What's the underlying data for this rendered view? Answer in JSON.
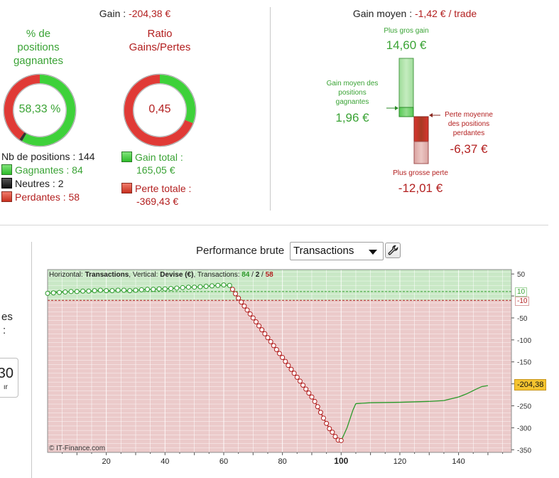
{
  "summary": {
    "gain_label": "Gain : ",
    "gain_value": "-204,38 €",
    "gain_moyen_label": "Gain moyen : ",
    "gain_moyen_value": "-1,42 € / trade"
  },
  "win_pct": {
    "title_line1": "% de",
    "title_line2": "positions",
    "title_line3": "gagnantes",
    "value": "58,33 %",
    "fraction_win": 0.5833,
    "fraction_neutral": 0.0139
  },
  "ratio": {
    "title_line1": "Ratio",
    "title_line2": "Gains/Pertes",
    "value": "0,45",
    "fraction_gain": 0.309
  },
  "positions": {
    "total_label": "Nb de positions : 144",
    "gagnantes": "Gagnantes : 84",
    "neutres": "Neutres : 2",
    "perdantes": "Perdantes : 58"
  },
  "totals": {
    "gain_total_label": "Gain total :",
    "gain_total_value": "165,05 €",
    "perte_totale_label": "Perte totale :",
    "perte_totale_value": "-369,43 €"
  },
  "gain_moyen_panel": {
    "plus_gros_gain_label": "Plus gros gain",
    "plus_gros_gain_value": "14,60 €",
    "gain_moyen_gagnantes_line1": "Gain moyen des",
    "gain_moyen_gagnantes_line2": "positions",
    "gain_moyen_gagnantes_line3": "gagnantes",
    "gain_moyen_gagnantes_value": "1,96 €",
    "perte_moyenne_line1": "Perte moyenne",
    "perte_moyenne_line2": "des positions",
    "perte_moyenne_line3": "perdantes",
    "perte_moyenne_value": "-6,37 €",
    "plus_grosse_perte_label": "Plus grosse perte",
    "plus_grosse_perte_value": "-12,01 €"
  },
  "left_partial": {
    "text1": "es",
    "text2": ":",
    "value": "30",
    "sub": "ır"
  },
  "performance": {
    "title": "Performance brute",
    "select_value": "Transactions",
    "info_h_label": "Horizontal: ",
    "info_h_value": "Transactions",
    "info_v_label": ", Vertical: ",
    "info_v_value": "Devise (€)",
    "info_t_label": ", Transactions: ",
    "info_win": "84",
    "info_slash1": " / ",
    "info_neutral": "2",
    "info_slash2": " / ",
    "info_lose": "58",
    "copyright": "© IT-Finance.com",
    "current_value_label": "-204,38",
    "band_upper_label": "10",
    "band_lower_label": "-10"
  },
  "colors": {
    "green": "#3aa335",
    "red": "#b32020",
    "green_zone": "#c9e8c6",
    "red_zone": "#ebcaca",
    "ring_green": "#3ed13a",
    "ring_red": "#e03a36"
  },
  "chart_data": {
    "type": "line",
    "xlabel": "",
    "ylabel": "",
    "xlim": [
      0,
      158
    ],
    "ylim": [
      -356,
      60
    ],
    "x_ticks": [
      20,
      40,
      60,
      80,
      100,
      120,
      140
    ],
    "x_bold_tick": 100,
    "y_ticks": [
      50,
      0,
      -50,
      -100,
      -150,
      -200,
      -250,
      -300,
      -350
    ],
    "band": [
      -10,
      10
    ],
    "current_value": -204.38,
    "series": [
      {
        "points": [
          [
            0,
            6
          ],
          [
            2,
            7
          ],
          [
            4,
            8
          ],
          [
            6,
            9
          ],
          [
            8,
            10
          ],
          [
            10,
            10
          ],
          [
            12,
            11
          ],
          [
            14,
            11
          ],
          [
            16,
            12
          ],
          [
            18,
            13
          ],
          [
            20,
            12
          ],
          [
            22,
            12
          ],
          [
            24,
            13
          ],
          [
            26,
            13
          ],
          [
            28,
            12
          ],
          [
            30,
            13
          ],
          [
            32,
            14
          ],
          [
            34,
            15
          ],
          [
            36,
            15
          ],
          [
            38,
            16
          ],
          [
            40,
            16
          ],
          [
            42,
            17
          ],
          [
            44,
            18
          ],
          [
            46,
            19
          ],
          [
            48,
            20
          ],
          [
            50,
            20
          ],
          [
            52,
            21
          ],
          [
            54,
            22
          ],
          [
            56,
            23
          ],
          [
            58,
            24
          ],
          [
            60,
            25
          ],
          [
            62,
            24
          ],
          [
            63,
            15
          ],
          [
            64,
            5
          ],
          [
            65,
            -5
          ],
          [
            66,
            -14
          ],
          [
            67,
            -23
          ],
          [
            68,
            -32
          ],
          [
            69,
            -41
          ],
          [
            70,
            -50
          ],
          [
            71,
            -59
          ],
          [
            72,
            -68
          ],
          [
            73,
            -77
          ],
          [
            74,
            -86
          ],
          [
            75,
            -95
          ],
          [
            76,
            -104
          ],
          [
            77,
            -113
          ],
          [
            78,
            -122
          ],
          [
            79,
            -131
          ],
          [
            80,
            -140
          ],
          [
            81,
            -149
          ],
          [
            82,
            -158
          ],
          [
            83,
            -167
          ],
          [
            84,
            -176
          ],
          [
            85,
            -185
          ],
          [
            86,
            -194
          ],
          [
            87,
            -203
          ],
          [
            88,
            -212
          ],
          [
            89,
            -221
          ],
          [
            90,
            -230
          ],
          [
            91,
            -240
          ],
          [
            92,
            -252
          ],
          [
            93,
            -265
          ],
          [
            94,
            -278
          ],
          [
            95,
            -290
          ],
          [
            96,
            -302
          ],
          [
            97,
            -310
          ],
          [
            98,
            -320
          ],
          [
            99,
            -328
          ],
          [
            100,
            -329
          ],
          [
            101,
            -315
          ],
          [
            102,
            -300
          ],
          [
            103,
            -280
          ],
          [
            104,
            -260
          ],
          [
            105,
            -245
          ],
          [
            110,
            -243
          ],
          [
            120,
            -242
          ],
          [
            130,
            -240
          ],
          [
            135,
            -238
          ],
          [
            140,
            -230
          ],
          [
            143,
            -222
          ],
          [
            146,
            -212
          ],
          [
            148,
            -206
          ],
          [
            150,
            -204
          ]
        ]
      }
    ]
  }
}
